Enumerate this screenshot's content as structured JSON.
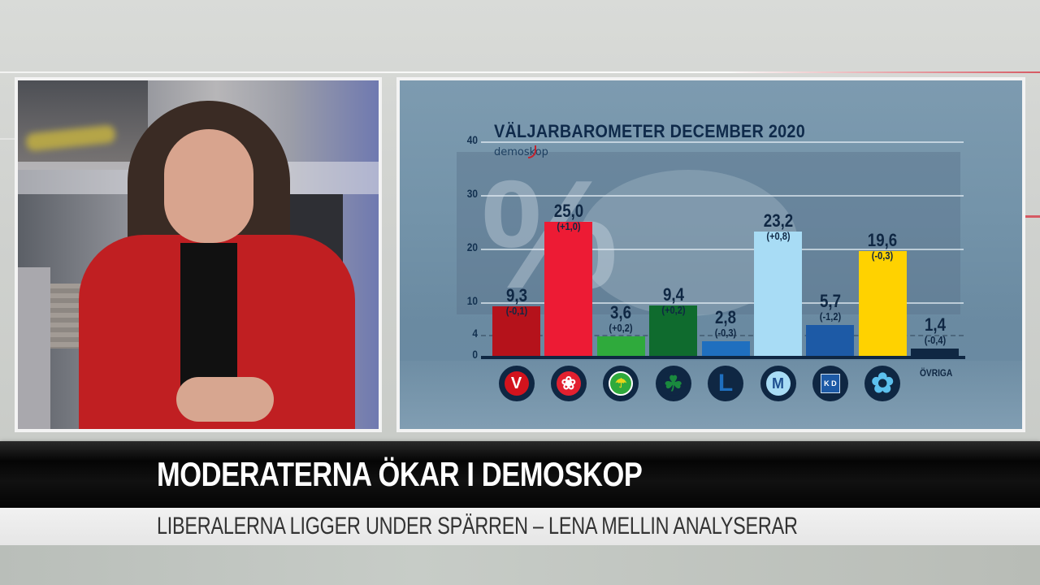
{
  "broadcast": {
    "headline": "MODERATERNA ÖKAR I DEMOSKOP",
    "subheadline": "LIBERALERNA LIGGER UNDER SPÄRREN – LENA MELLIN ANALYSERAR"
  },
  "chart_panel": {
    "title": "VÄLJARBAROMETER DECEMBER 2020",
    "brand": "demoskop",
    "ovriga_label": "ÖVRIGA"
  },
  "chart_data": {
    "type": "bar",
    "title": "VÄLJARBAROMETER DECEMBER 2020",
    "source": "demoskop",
    "xlabel": "",
    "ylabel": "%",
    "ylim": [
      0,
      40
    ],
    "yticks": [
      0,
      4,
      10,
      20,
      30,
      40
    ],
    "threshold_line": 4,
    "grid": true,
    "categories": [
      "V",
      "S",
      "MP",
      "C",
      "L",
      "M",
      "KD",
      "SD",
      "Övriga"
    ],
    "values": [
      9.3,
      25.0,
      3.6,
      9.4,
      2.8,
      23.2,
      5.7,
      19.6,
      1.4
    ],
    "value_labels": [
      "9,3",
      "25,0",
      "3,6",
      "9,4",
      "2,8",
      "23,2",
      "5,7",
      "19,6",
      "1,4"
    ],
    "changes": [
      -0.1,
      1.0,
      0.2,
      0.2,
      -0.3,
      0.8,
      -1.2,
      -0.3,
      -0.4
    ],
    "change_labels": [
      "(-0,1)",
      "(+1,0)",
      "(+0,2)",
      "(+0,2)",
      "(-0,3)",
      "(+0,8)",
      "(-1,2)",
      "(-0,3)",
      "(-0,4)"
    ],
    "colors": [
      "#b5121b",
      "#ed1b34",
      "#2faa3c",
      "#0f6b2e",
      "#1f6fbf",
      "#a8dcf5",
      "#1d5aa6",
      "#ffd200",
      "#0f2743"
    ]
  },
  "party_logos": [
    {
      "party": "V",
      "icon": "vansterpartiet-v-icon",
      "glyph": "V"
    },
    {
      "party": "S",
      "icon": "socialdemokraterna-rose-icon",
      "glyph": "❀"
    },
    {
      "party": "MP",
      "icon": "miljopartiet-dandelion-icon",
      "glyph": ""
    },
    {
      "party": "C",
      "icon": "centerpartiet-clover-icon",
      "glyph": "☘"
    },
    {
      "party": "L",
      "icon": "liberalerna-l-icon",
      "glyph": "L"
    },
    {
      "party": "M",
      "icon": "moderaterna-m-icon",
      "glyph": "M"
    },
    {
      "party": "KD",
      "icon": "kristdemokraterna-kd-icon",
      "glyph": "K D"
    },
    {
      "party": "SD",
      "icon": "sverigedemokraterna-flower-icon",
      "glyph": "✿"
    }
  ]
}
